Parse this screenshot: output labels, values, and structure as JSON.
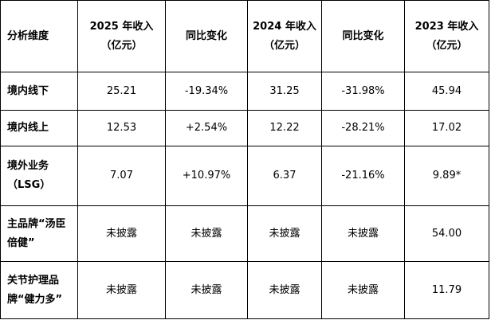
{
  "table": {
    "header": [
      [
        "分析维度"
      ],
      [
        "2025 年收入",
        "（亿元）"
      ],
      [
        "同比变化"
      ],
      [
        "2024 年收入",
        "（亿元）"
      ],
      [
        "同比变化"
      ],
      [
        "2023 年收入",
        "（亿元）"
      ]
    ],
    "rows": [
      [
        [
          "境内线下"
        ],
        "25.21",
        "-19.34%",
        "31.25",
        "-31.98%",
        "45.94"
      ],
      [
        [
          "境内线上"
        ],
        "12.53",
        "+2.54%",
        "12.22",
        "-28.21%",
        "17.02"
      ],
      [
        [
          "境外业务",
          "（LSG）"
        ],
        "7.07",
        "+10.97%",
        "6.37",
        "-21.16%",
        "9.89*"
      ],
      [
        [
          "主品牌“汤臣",
          "倍健”"
        ],
        "未披露",
        "未披露",
        "未披露",
        "未披露",
        "54.00"
      ],
      [
        [
          "关节护理品",
          "牌“健力多”"
        ],
        "未披露",
        "未披露",
        "未披露",
        "未披露",
        "11.79"
      ]
    ]
  }
}
